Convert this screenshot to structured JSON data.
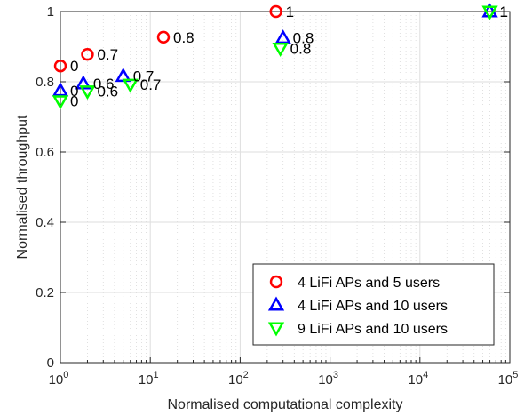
{
  "chart_data": {
    "type": "scatter",
    "title": "",
    "xlabel": "Normalised computational complexity",
    "ylabel": "Normalised throughput",
    "xscale": "log",
    "xlim": [
      1,
      100000
    ],
    "ylim": [
      0,
      1
    ],
    "x_ticks": [
      {
        "base": "10",
        "exp": "0"
      },
      {
        "base": "10",
        "exp": "1"
      },
      {
        "base": "10",
        "exp": "2"
      },
      {
        "base": "10",
        "exp": "3"
      },
      {
        "base": "10",
        "exp": "4"
      },
      {
        "base": "10",
        "exp": "5"
      }
    ],
    "y_ticks": [
      "0",
      "0.2",
      "0.4",
      "0.6",
      "0.8",
      "1"
    ],
    "grid": true,
    "legend_position": "bottom-right",
    "series": [
      {
        "name": "4 LiFi APs and 5 users",
        "marker": "circle",
        "color": "#ff0000",
        "points": [
          {
            "x": 1.0,
            "y": 0.845,
            "label": "0"
          },
          {
            "x": 2.0,
            "y": 0.878,
            "label": "0.7"
          },
          {
            "x": 14.0,
            "y": 0.927,
            "label": "0.8"
          },
          {
            "x": 250,
            "y": 1.0,
            "label": "1"
          }
        ]
      },
      {
        "name": "4 LiFi APs and 10 users",
        "marker": "triangle-up",
        "color": "#0000ff",
        "points": [
          {
            "x": 1.0,
            "y": 0.775,
            "label": "0"
          },
          {
            "x": 1.8,
            "y": 0.795,
            "label": "0.6"
          },
          {
            "x": 5.0,
            "y": 0.816,
            "label": "0.7"
          },
          {
            "x": 300,
            "y": 0.925,
            "label": "0.8"
          },
          {
            "x": 60000,
            "y": 1.0,
            "label": "1"
          }
        ]
      },
      {
        "name": "9 LiFi APs and 10 users",
        "marker": "triangle-down",
        "color": "#00ff00",
        "points": [
          {
            "x": 1.0,
            "y": 0.745,
            "label": "0"
          },
          {
            "x": 2.0,
            "y": 0.773,
            "label": "0.6"
          },
          {
            "x": 6.0,
            "y": 0.792,
            "label": "0.7"
          },
          {
            "x": 280,
            "y": 0.895,
            "label": "0.8"
          },
          {
            "x": 60000,
            "y": 1.0,
            "label": "1"
          }
        ]
      }
    ]
  }
}
